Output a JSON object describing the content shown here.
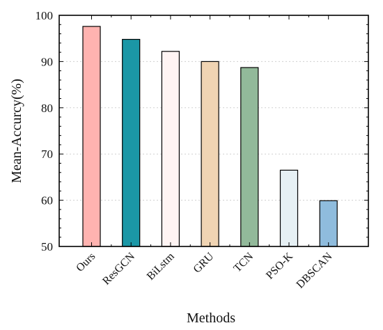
{
  "chart_data": {
    "type": "bar",
    "title": "",
    "xlabel": "Methods",
    "ylabel": "Mean-Accurcy(%)",
    "categories": [
      "Ours",
      "ResGCN",
      "BiLstm",
      "GRU",
      "TCN",
      "PSO-K",
      "DBSCAN"
    ],
    "values": [
      97.6,
      94.8,
      92.2,
      90.0,
      88.7,
      66.5,
      59.9
    ],
    "colors": [
      "#ffb3b0",
      "#1b97a6",
      "#fff4f3",
      "#f0d4b3",
      "#92b99a",
      "#e6f0f4",
      "#8fbcdd"
    ],
    "ylim": [
      50,
      100
    ],
    "yticks": [
      50,
      60,
      70,
      80,
      90,
      100
    ],
    "grid": true,
    "legend": "none"
  }
}
